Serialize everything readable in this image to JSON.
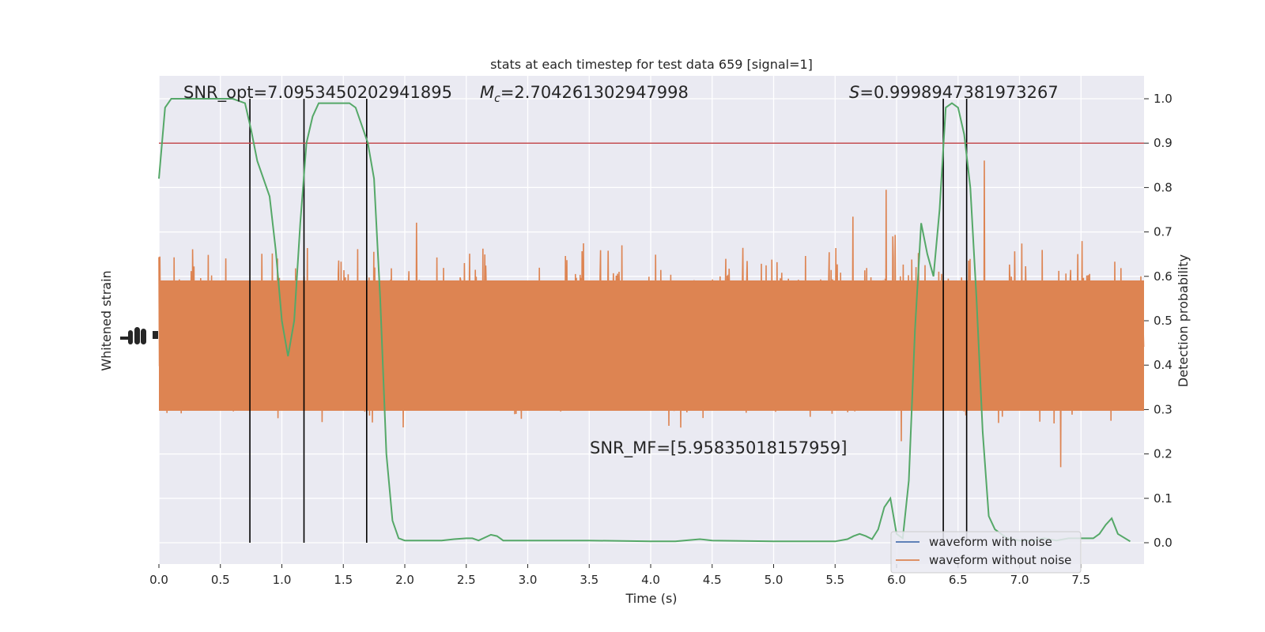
{
  "chart_data": {
    "type": "line",
    "title": "stats at each timestep for test data 659 [signal=1]",
    "xlabel": "Time (s)",
    "ylabel_left": "Whitened strain",
    "ylabel_right": "Detection probability",
    "xlim": [
      0,
      8.0
    ],
    "ylim_right": [
      -0.05,
      1.05
    ],
    "x_ticks": [
      "0.0",
      "0.5",
      "1.0",
      "1.5",
      "2.0",
      "2.5",
      "3.0",
      "3.5",
      "4.0",
      "4.5",
      "5.0",
      "5.5",
      "6.0",
      "6.5",
      "7.0",
      "7.5"
    ],
    "x_tick_values": [
      0,
      0.5,
      1,
      1.5,
      2,
      2.5,
      3,
      3.5,
      4,
      4.5,
      5,
      5.5,
      6,
      6.5,
      7,
      7.5
    ],
    "y_ticks_right": [
      "0.0",
      "0.1",
      "0.2",
      "0.3",
      "0.4",
      "0.5",
      "0.6",
      "0.7",
      "0.8",
      "0.9",
      "1.0"
    ],
    "y_tick_values_right": [
      0,
      0.1,
      0.2,
      0.3,
      0.4,
      0.5,
      0.6,
      0.7,
      0.8,
      0.9,
      1.0
    ],
    "threshold": 0.9,
    "vertical_lines": [
      0.74,
      1.18,
      1.69,
      6.38,
      6.57
    ],
    "annotations": {
      "snr_opt": "SNR_opt=7.0953450202941895",
      "mc_symbol": "M",
      "mc_sub": "c",
      "mc_value": "=2.704261302947998",
      "s_symbol": "S",
      "s_value": "=0.9998947381973267",
      "snr_mf": "SNR_MF=[5.95835018157959]"
    },
    "series": [
      {
        "name": "waveform with noise",
        "color": "#4c72b0"
      },
      {
        "name": "waveform without noise",
        "color": "#dd8452"
      },
      {
        "color": "#55a868",
        "x": [
          0,
          0.05,
          0.1,
          0.2,
          0.3,
          0.4,
          0.5,
          0.6,
          0.7,
          0.75,
          0.8,
          0.9,
          0.95,
          1.0,
          1.05,
          1.1,
          1.15,
          1.2,
          1.25,
          1.3,
          1.4,
          1.5,
          1.55,
          1.6,
          1.65,
          1.7,
          1.75,
          1.8,
          1.85,
          1.9,
          1.95,
          2.0,
          2.1,
          2.2,
          2.3,
          2.4,
          2.5,
          2.55,
          2.6,
          2.7,
          2.75,
          2.8,
          3.0,
          3.5,
          4.0,
          4.2,
          4.4,
          4.5,
          5.0,
          5.5,
          5.6,
          5.65,
          5.7,
          5.75,
          5.8,
          5.85,
          5.9,
          5.95,
          6.0,
          6.05,
          6.1,
          6.15,
          6.2,
          6.25,
          6.3,
          6.35,
          6.4,
          6.45,
          6.5,
          6.55,
          6.6,
          6.65,
          6.7,
          6.75,
          6.8,
          6.85,
          6.9,
          7.0,
          7.1,
          7.2,
          7.3,
          7.4,
          7.5,
          7.55,
          7.6,
          7.65,
          7.7,
          7.75,
          7.8,
          7.9
        ],
        "y": [
          0.82,
          0.98,
          1.0,
          1.0,
          1.0,
          1.0,
          1.0,
          1.0,
          0.99,
          0.93,
          0.86,
          0.78,
          0.66,
          0.5,
          0.42,
          0.5,
          0.72,
          0.9,
          0.96,
          0.99,
          0.99,
          0.99,
          0.99,
          0.98,
          0.94,
          0.9,
          0.82,
          0.55,
          0.2,
          0.05,
          0.01,
          0.005,
          0.005,
          0.005,
          0.005,
          0.008,
          0.01,
          0.01,
          0.005,
          0.018,
          0.015,
          0.005,
          0.005,
          0.005,
          0.003,
          0.003,
          0.008,
          0.005,
          0.003,
          0.003,
          0.008,
          0.015,
          0.02,
          0.015,
          0.008,
          0.03,
          0.08,
          0.1,
          0.02,
          0.01,
          0.14,
          0.48,
          0.72,
          0.65,
          0.6,
          0.75,
          0.98,
          0.99,
          0.98,
          0.92,
          0.8,
          0.55,
          0.25,
          0.06,
          0.03,
          0.02,
          0.01,
          0.005,
          0.005,
          0.01,
          0.005,
          0.01,
          0.01,
          0.01,
          0.01,
          0.02,
          0.04,
          0.055,
          0.02,
          0.003
        ]
      }
    ],
    "threshold_color": "#c44e52",
    "legend_position": "lower-right",
    "grid": true
  }
}
